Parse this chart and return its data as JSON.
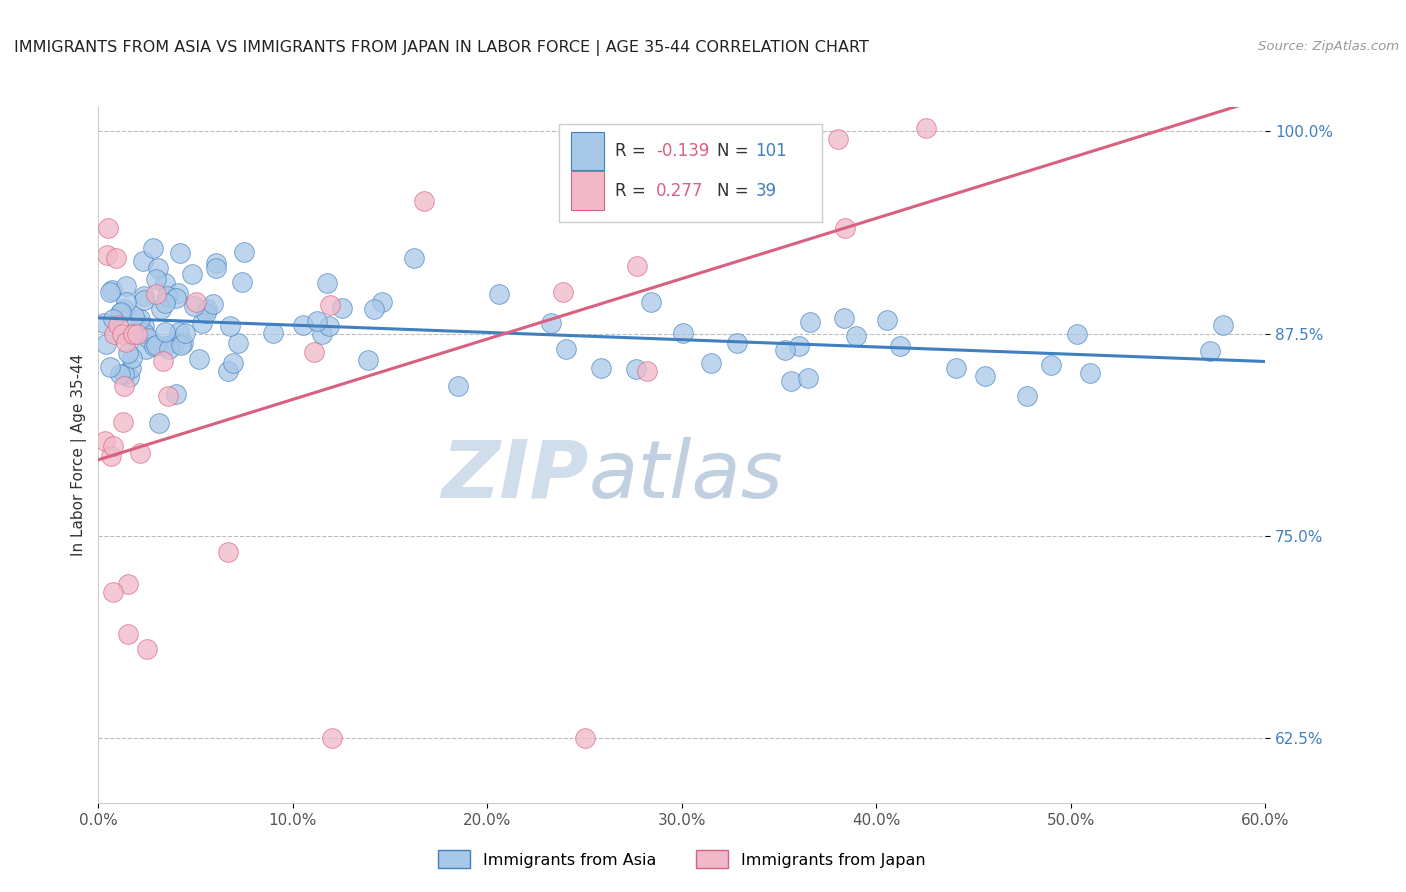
{
  "title": "IMMIGRANTS FROM ASIA VS IMMIGRANTS FROM JAPAN IN LABOR FORCE | AGE 35-44 CORRELATION CHART",
  "source": "Source: ZipAtlas.com",
  "ylabel": "In Labor Force | Age 35-44",
  "xlim": [
    0.0,
    0.6
  ],
  "ylim": [
    0.585,
    1.015
  ],
  "xtick_labels": [
    "0.0%",
    "10.0%",
    "20.0%",
    "30.0%",
    "40.0%",
    "50.0%",
    "60.0%"
  ],
  "xtick_values": [
    0.0,
    0.1,
    0.2,
    0.3,
    0.4,
    0.5,
    0.6
  ],
  "ytick_labels": [
    "100.0%",
    "87.5%",
    "75.0%",
    "62.5%"
  ],
  "ytick_values": [
    1.0,
    0.875,
    0.75,
    0.625
  ],
  "R_asia": -0.139,
  "N_asia": 101,
  "R_japan": 0.277,
  "N_japan": 39,
  "color_asia": "#a8c8e8",
  "color_japan": "#f0b8c8",
  "trend_color_asia": "#4080c0",
  "trend_color_japan": "#d86080",
  "text_color_blue": "#4080c0",
  "text_color_pink": "#d86080",
  "background_color": "#ffffff",
  "grid_color": "#bbbbbb",
  "watermark_zip": "ZIP",
  "watermark_atlas": "atlas",
  "legend_box_color": "#f0f0f8"
}
